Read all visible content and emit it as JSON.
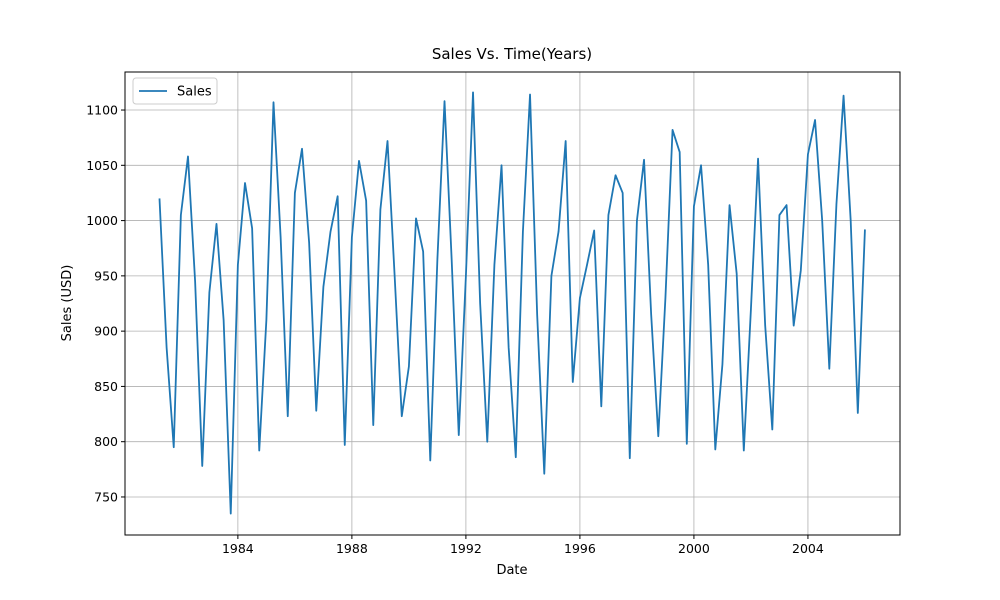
{
  "chart_data": {
    "type": "line",
    "title": "Sales Vs. Time(Years)",
    "x_label": "Date",
    "y_label": "Sales (USD)",
    "x": [
      1981.25,
      1981.5,
      1981.75,
      1982,
      1982.25,
      1982.5,
      1982.75,
      1983,
      1983.25,
      1983.5,
      1983.75,
      1984,
      1984.25,
      1984.5,
      1984.75,
      1985,
      1985.25,
      1985.5,
      1985.75,
      1986,
      1986.25,
      1986.5,
      1986.75,
      1987,
      1987.25,
      1987.5,
      1987.75,
      1988,
      1988.25,
      1988.5,
      1988.75,
      1989,
      1989.25,
      1989.5,
      1989.75,
      1990,
      1990.25,
      1990.5,
      1990.75,
      1991,
      1991.25,
      1991.5,
      1991.75,
      1992,
      1992.25,
      1992.5,
      1992.75,
      1993,
      1993.25,
      1993.5,
      1993.75,
      1994,
      1994.25,
      1994.5,
      1994.75,
      1995,
      1995.25,
      1995.5,
      1995.75,
      1996,
      1996.25,
      1996.5,
      1996.75,
      1997,
      1997.25,
      1997.5,
      1997.75,
      1998,
      1998.25,
      1998.5,
      1998.75,
      1999,
      1999.25,
      1999.5,
      1999.75,
      2000,
      2000.25,
      2000.5,
      2000.75,
      2001,
      2001.25,
      2001.5,
      2001.75,
      2002,
      2002.25,
      2002.5,
      2002.75,
      2003,
      2003.25,
      2003.5,
      2003.75,
      2004,
      2004.25,
      2004.5,
      2004.75,
      2005,
      2005.25,
      2005.5,
      2005.75,
      2006
    ],
    "series": [
      {
        "name": "Sales",
        "color": "#1f77b4",
        "values": [
          1020,
          885,
          795,
          1005,
          1058,
          945,
          778,
          935,
          997,
          910,
          735,
          960,
          1034,
          993,
          792,
          910,
          1107,
          985,
          823,
          1025,
          1065,
          980,
          828,
          940,
          990,
          1022,
          797,
          985,
          1054,
          1018,
          815,
          1010,
          1072,
          950,
          823,
          868,
          1002,
          972,
          783,
          965,
          1108,
          965,
          806,
          950,
          1116,
          925,
          800,
          960,
          1050,
          885,
          786,
          990,
          1114,
          915,
          771,
          950,
          990,
          1072,
          854,
          930,
          960,
          991,
          832,
          1005,
          1041,
          1025,
          785,
          1000,
          1055,
          915,
          805,
          930,
          1082,
          1062,
          798,
          1013,
          1050,
          960,
          793,
          870,
          1014,
          952,
          792,
          920,
          1056,
          905,
          811,
          1005,
          1014,
          905,
          955,
          1060,
          1091,
          1000,
          866,
          1015,
          1113,
          1000,
          826,
          992
        ]
      }
    ],
    "xlim": [
      1980.04,
      2007.23
    ],
    "xticks": [
      1984,
      1988,
      1992,
      1996,
      2000,
      2004
    ],
    "ylim": [
      715.6,
      1134.4
    ],
    "yticks": [
      750,
      800,
      850,
      900,
      950,
      1000,
      1050,
      1100
    ],
    "grid": true,
    "legend": "upper left"
  }
}
